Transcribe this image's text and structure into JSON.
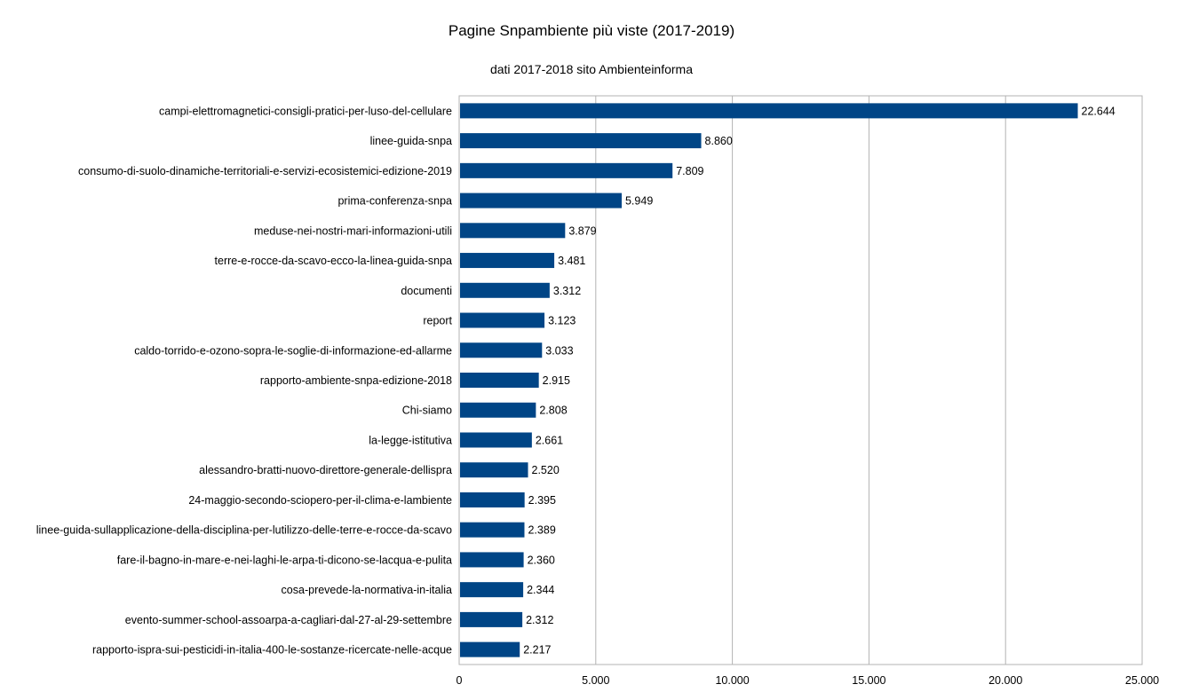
{
  "chart_data": {
    "type": "bar",
    "orientation": "horizontal",
    "title": "Pagine Snpambiente più viste (2017-2019)",
    "subtitle": "dati 2017-2018 sito Ambienteinforma",
    "xlabel": "",
    "ylabel": "",
    "xlim": [
      0,
      25000
    ],
    "xticks": [
      0,
      5000,
      10000,
      15000,
      20000,
      25000
    ],
    "xtick_labels": [
      "0",
      "5.000",
      "10.000",
      "15.000",
      "20.000",
      "25.000"
    ],
    "grid": true,
    "legend": "none",
    "bar_color": "#004586",
    "categories": [
      "campi-elettromagnetici-consigli-pratici-per-luso-del-cellulare",
      "linee-guida-snpa",
      "consumo-di-suolo-dinamiche-territoriali-e-servizi-ecosistemici-edizione-2019",
      "prima-conferenza-snpa",
      "meduse-nei-nostri-mari-informazioni-utili",
      "terre-e-rocce-da-scavo-ecco-la-linea-guida-snpa",
      "documenti",
      "report",
      "caldo-torrido-e-ozono-sopra-le-soglie-di-informazione-ed-allarme",
      "rapporto-ambiente-snpa-edizione-2018",
      "Chi-siamo",
      "la-legge-istitutiva",
      "alessandro-bratti-nuovo-direttore-generale-dellispra",
      "24-maggio-secondo-sciopero-per-il-clima-e-lambiente",
      "linee-guida-sullapplicazione-della-disciplina-per-lutilizzo-delle-terre-e-rocce-da-scavo",
      "fare-il-bagno-in-mare-e-nei-laghi-le-arpa-ti-dicono-se-lacqua-e-pulita",
      "cosa-prevede-la-normativa-in-italia",
      "evento-summer-school-assoarpa-a-cagliari-dal-27-al-29-settembre",
      "rapporto-ispra-sui-pesticidi-in-italia-400-le-sostanze-ricercate-nelle-acque"
    ],
    "values": [
      22644,
      8860,
      7809,
      5949,
      3879,
      3481,
      3312,
      3123,
      3033,
      2915,
      2808,
      2661,
      2520,
      2395,
      2389,
      2360,
      2344,
      2312,
      2217
    ],
    "value_labels": [
      "22.644",
      "8.860",
      "7.809",
      "5.949",
      "3.879",
      "3.481",
      "3.312",
      "3.123",
      "3.033",
      "2.915",
      "2.808",
      "2.661",
      "2.520",
      "2.395",
      "2.389",
      "2.360",
      "2.344",
      "2.312",
      "2.217"
    ]
  }
}
